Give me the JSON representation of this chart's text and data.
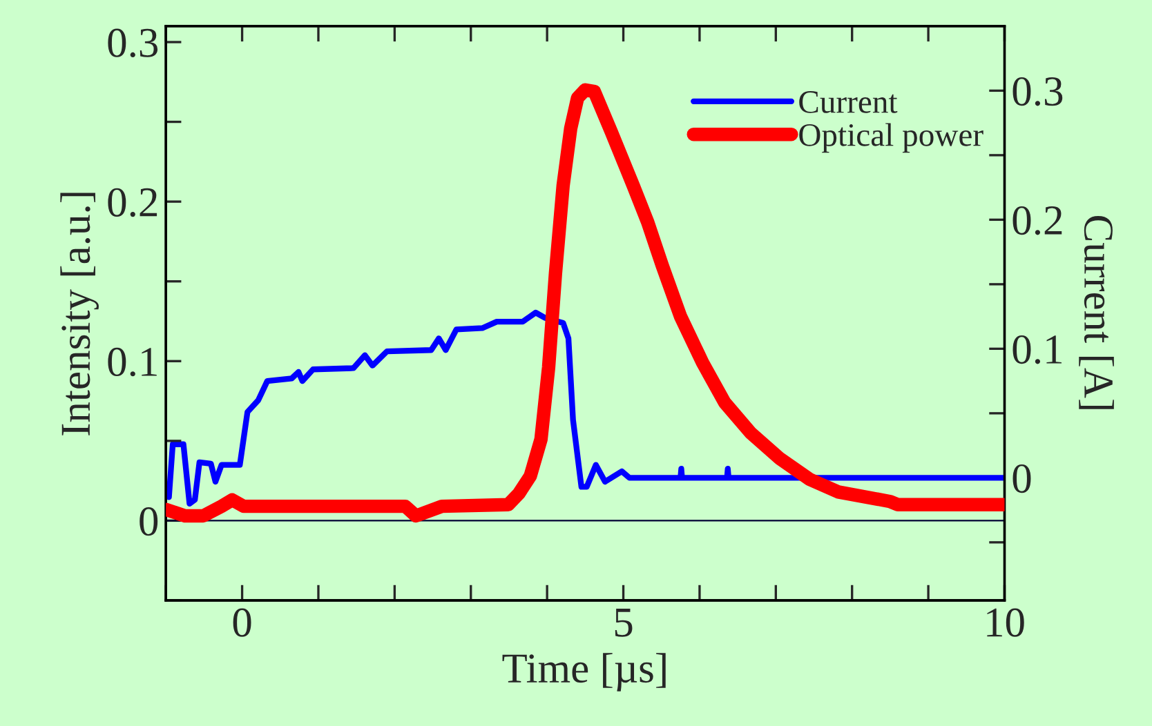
{
  "chart_data": {
    "type": "line",
    "xlabel": "Time [µs]",
    "ylabel": "Intensity [a.u.]",
    "y2label": "Current [A]",
    "series": [
      {
        "name": "Current",
        "color": "#0000ff",
        "axis": "y2",
        "x": [
          -0.96,
          -0.91,
          -0.77,
          -0.69,
          -0.62,
          -0.56,
          -0.41,
          -0.35,
          -0.27,
          -0.03,
          0.07,
          0.21,
          0.33,
          0.65,
          0.74,
          0.79,
          0.93,
          1.46,
          1.61,
          1.71,
          1.9,
          2.48,
          2.58,
          2.67,
          2.81,
          3.15,
          3.34,
          3.68,
          3.85,
          3.97,
          4.21,
          4.28,
          4.34,
          4.45,
          4.52,
          4.64,
          4.76,
          4.98,
          5.08,
          5.75,
          5.76,
          5.77,
          6.36,
          6.37,
          6.38,
          10.0
        ],
        "values": [
          -0.015,
          0.026,
          0.026,
          -0.02,
          -0.017,
          0.012,
          0.011,
          -0.003,
          0.01,
          0.01,
          0.051,
          0.06,
          0.075,
          0.077,
          0.082,
          0.075,
          0.084,
          0.085,
          0.095,
          0.087,
          0.098,
          0.099,
          0.108,
          0.099,
          0.115,
          0.116,
          0.121,
          0.121,
          0.128,
          0.124,
          0.12,
          0.108,
          0.045,
          -0.007,
          -0.007,
          0.01,
          -0.003,
          0.005,
          0.0,
          0.0,
          0.007,
          0.0,
          0.0,
          0.007,
          0.0,
          0.0
        ]
      },
      {
        "name": "Optical power",
        "color": "#ff0000",
        "x": [
          -1.0,
          -0.75,
          -0.51,
          -0.27,
          -0.13,
          0.02,
          0.69,
          2.14,
          2.28,
          2.62,
          3.49,
          3.63,
          3.78,
          3.92,
          4.02,
          4.11,
          4.21,
          4.31,
          4.4,
          4.5,
          4.62,
          4.84,
          5.13,
          5.32,
          5.51,
          5.75,
          6.04,
          6.33,
          6.67,
          7.05,
          7.44,
          7.82,
          8.5,
          8.6,
          10.0
        ],
        "values": [
          0.007,
          0.003,
          0.003,
          0.009,
          0.013,
          0.009,
          0.009,
          0.009,
          0.003,
          0.009,
          0.01,
          0.017,
          0.028,
          0.051,
          0.096,
          0.155,
          0.21,
          0.246,
          0.265,
          0.27,
          0.269,
          0.244,
          0.21,
          0.187,
          0.16,
          0.128,
          0.099,
          0.074,
          0.055,
          0.039,
          0.026,
          0.018,
          0.012,
          0.01,
          0.01
        ]
      }
    ],
    "xlim": [
      -1,
      10
    ],
    "xticks": [
      {
        "value": -1,
        "label": null
      },
      0,
      {
        "value": 1,
        "label": null
      },
      {
        "value": 2,
        "label": null
      },
      {
        "value": 3,
        "label": null
      },
      {
        "value": 4,
        "label": null
      },
      5,
      {
        "value": 6,
        "label": null
      },
      {
        "value": 7,
        "label": null
      },
      {
        "value": 8,
        "label": null
      },
      {
        "value": 9,
        "label": null
      },
      10
    ],
    "ylim": [
      -0.05,
      0.31
    ],
    "yticks": [
      {
        "value": -0.05,
        "label": null
      },
      0,
      {
        "value": 0.05,
        "label": null
      },
      0.1,
      {
        "value": 0.15,
        "label": null
      },
      0.2,
      {
        "value": 0.25,
        "label": null
      },
      0.3
    ],
    "y2lim": [
      -0.095,
      0.35
    ],
    "y2ticks": [
      {
        "value": -0.05,
        "label": null
      },
      0,
      {
        "value": 0.05,
        "label": null
      },
      0.1,
      {
        "value": 0.15,
        "label": null
      },
      0.2,
      {
        "value": 0.25,
        "label": null
      },
      0.3
    ],
    "ref_lines": [
      {
        "axis": "y",
        "value": 0,
        "color": "#000033"
      }
    ],
    "legend": "top right",
    "grid": false,
    "line_style": "solid",
    "marker": "none"
  }
}
